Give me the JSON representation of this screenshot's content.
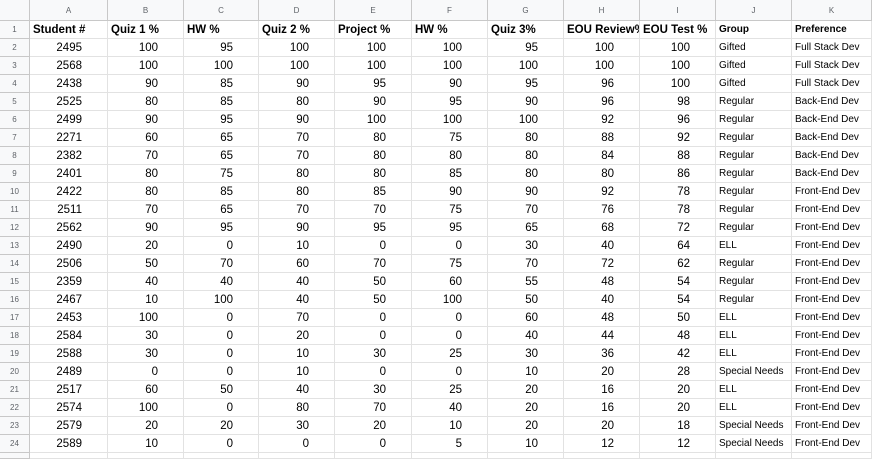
{
  "columns": [
    "A",
    "B",
    "C",
    "D",
    "E",
    "F",
    "G",
    "H",
    "I",
    "J",
    "K"
  ],
  "headers": [
    "Student  #",
    "Quiz 1 %",
    "HW %",
    "Quiz 2 %",
    "Project %",
    "HW %",
    "Quiz 3%",
    "EOU Review%",
    "EOU Test %",
    "Group",
    "Preference"
  ],
  "rows": [
    [
      "2495",
      "100",
      "95",
      "100",
      "100",
      "100",
      "95",
      "100",
      "100",
      "Gifted",
      "Full Stack Dev"
    ],
    [
      "2568",
      "100",
      "100",
      "100",
      "100",
      "100",
      "100",
      "100",
      "100",
      "Gifted",
      "Full Stack Dev"
    ],
    [
      "2438",
      "90",
      "85",
      "90",
      "95",
      "90",
      "95",
      "96",
      "100",
      "Gifted",
      "Full Stack Dev"
    ],
    [
      "2525",
      "80",
      "85",
      "80",
      "90",
      "95",
      "90",
      "96",
      "98",
      "Regular",
      "Back-End Dev"
    ],
    [
      "2499",
      "90",
      "95",
      "90",
      "100",
      "100",
      "100",
      "92",
      "96",
      "Regular",
      "Back-End Dev"
    ],
    [
      "2271",
      "60",
      "65",
      "70",
      "80",
      "75",
      "80",
      "88",
      "92",
      "Regular",
      "Back-End Dev"
    ],
    [
      "2382",
      "70",
      "65",
      "70",
      "80",
      "80",
      "80",
      "84",
      "88",
      "Regular",
      "Back-End Dev"
    ],
    [
      "2401",
      "80",
      "75",
      "80",
      "80",
      "85",
      "80",
      "80",
      "86",
      "Regular",
      "Back-End Dev"
    ],
    [
      "2422",
      "80",
      "85",
      "80",
      "85",
      "90",
      "90",
      "92",
      "78",
      "Regular",
      "Front-End Dev"
    ],
    [
      "2511",
      "70",
      "65",
      "70",
      "70",
      "75",
      "70",
      "76",
      "78",
      "Regular",
      "Front-End Dev"
    ],
    [
      "2562",
      "90",
      "95",
      "90",
      "95",
      "95",
      "65",
      "68",
      "72",
      "Regular",
      "Front-End Dev"
    ],
    [
      "2490",
      "20",
      "0",
      "10",
      "0",
      "0",
      "30",
      "40",
      "64",
      "ELL",
      "Front-End Dev"
    ],
    [
      "2506",
      "50",
      "70",
      "60",
      "70",
      "75",
      "70",
      "72",
      "62",
      "Regular",
      "Front-End Dev"
    ],
    [
      "2359",
      "40",
      "40",
      "40",
      "50",
      "60",
      "55",
      "48",
      "54",
      "Regular",
      "Front-End Dev"
    ],
    [
      "2467",
      "10",
      "100",
      "40",
      "50",
      "100",
      "50",
      "40",
      "54",
      "Regular",
      "Front-End Dev"
    ],
    [
      "2453",
      "100",
      "0",
      "70",
      "0",
      "0",
      "60",
      "48",
      "50",
      "ELL",
      "Front-End Dev"
    ],
    [
      "2584",
      "30",
      "0",
      "20",
      "0",
      "0",
      "40",
      "44",
      "48",
      "ELL",
      "Front-End Dev"
    ],
    [
      "2588",
      "30",
      "0",
      "10",
      "30",
      "25",
      "30",
      "36",
      "42",
      "ELL",
      "Front-End Dev"
    ],
    [
      "2489",
      "0",
      "0",
      "10",
      "0",
      "0",
      "10",
      "20",
      "28",
      "Special Needs",
      "Front-End Dev"
    ],
    [
      "2517",
      "60",
      "50",
      "40",
      "30",
      "25",
      "20",
      "16",
      "20",
      "ELL",
      "Front-End Dev"
    ],
    [
      "2574",
      "100",
      "0",
      "80",
      "70",
      "40",
      "20",
      "16",
      "20",
      "ELL",
      "Front-End Dev"
    ],
    [
      "2579",
      "20",
      "20",
      "30",
      "20",
      "10",
      "20",
      "20",
      "18",
      "Special Needs",
      "Front-End Dev"
    ],
    [
      "2589",
      "10",
      "0",
      "0",
      "0",
      "5",
      "10",
      "12",
      "12",
      "Special Needs",
      "Front-End Dev"
    ]
  ],
  "row_numbers": [
    "1",
    "2",
    "3",
    "4",
    "5",
    "6",
    "7",
    "8",
    "9",
    "10",
    "11",
    "12",
    "13",
    "14",
    "15",
    "16",
    "17",
    "18",
    "19",
    "20",
    "21",
    "22",
    "23",
    "24"
  ]
}
